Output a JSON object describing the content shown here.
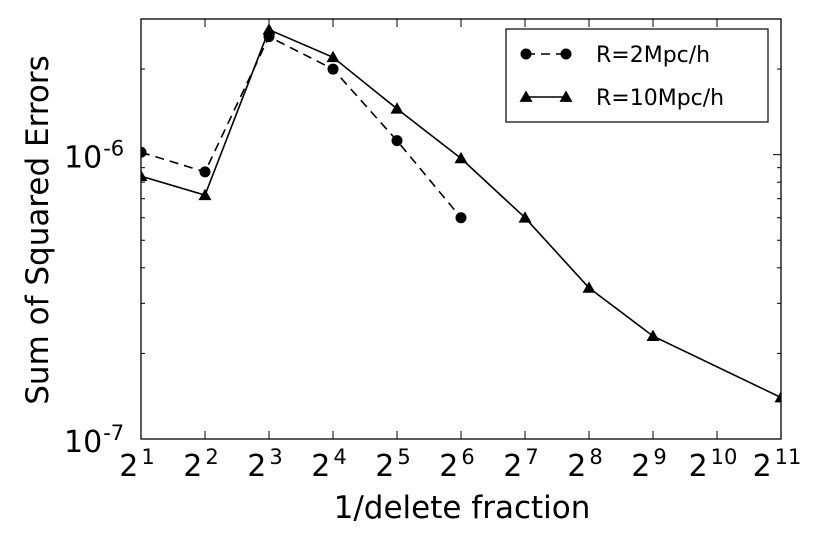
{
  "chart_data": {
    "type": "line",
    "xlabel": "1/delete fraction",
    "ylabel": "Sum of Squared Errors",
    "x_scale": "log2",
    "y_scale": "log10",
    "xlim": [
      2,
      2048
    ],
    "ylim": [
      1e-07,
      3e-06
    ],
    "x_ticks": [
      {
        "value": 2,
        "base": "2",
        "exp": "1"
      },
      {
        "value": 4,
        "base": "2",
        "exp": "2"
      },
      {
        "value": 8,
        "base": "2",
        "exp": "3"
      },
      {
        "value": 16,
        "base": "2",
        "exp": "4"
      },
      {
        "value": 32,
        "base": "2",
        "exp": "5"
      },
      {
        "value": 64,
        "base": "2",
        "exp": "6"
      },
      {
        "value": 128,
        "base": "2",
        "exp": "7"
      },
      {
        "value": 256,
        "base": "2",
        "exp": "8"
      },
      {
        "value": 512,
        "base": "2",
        "exp": "9"
      },
      {
        "value": 1024,
        "base": "2",
        "exp": "10"
      },
      {
        "value": 2048,
        "base": "2",
        "exp": "11"
      }
    ],
    "y_major_ticks": [
      {
        "value": 1e-07,
        "base": "10",
        "exp": "-7"
      },
      {
        "value": 1e-06,
        "base": "10",
        "exp": "-6"
      }
    ],
    "y_minor_ticks": [
      2e-07,
      3e-07,
      4e-07,
      5e-07,
      6e-07,
      7e-07,
      8e-07,
      9e-07,
      2e-06,
      3e-06
    ],
    "legend_position": "top-right",
    "grid": false,
    "series": [
      {
        "name": "R=2Mpc/h",
        "marker": "circle",
        "line_style": "dashed",
        "color": "#000000",
        "x": [
          2,
          4,
          8,
          16,
          32,
          64
        ],
        "y": [
          1.02e-06,
          8.7e-07,
          2.6e-06,
          2e-06,
          1.12e-06,
          6e-07
        ]
      },
      {
        "name": "R=10Mpc/h",
        "marker": "triangle",
        "line_style": "solid",
        "color": "#000000",
        "x": [
          2,
          4,
          8,
          16,
          32,
          64,
          128,
          256,
          512,
          2048
        ],
        "y": [
          8.4e-07,
          7.2e-07,
          2.75e-06,
          2.2e-06,
          1.45e-06,
          9.7e-07,
          6e-07,
          3.4e-07,
          2.3e-07,
          1.4e-07
        ]
      }
    ]
  }
}
